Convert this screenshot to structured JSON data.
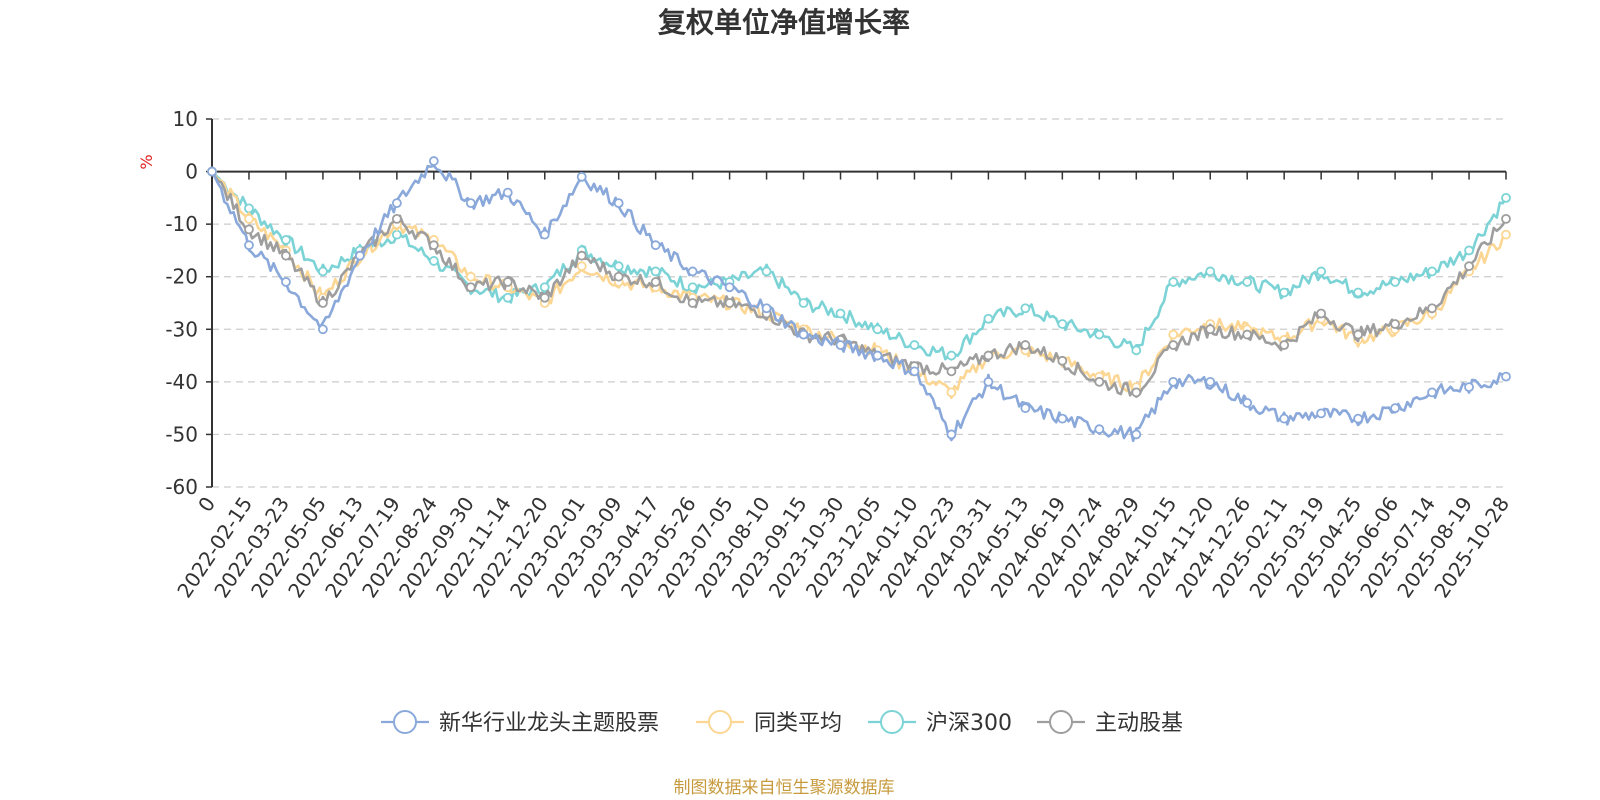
{
  "chart_data": {
    "type": "line",
    "title": "复权单位净值增长率",
    "ylabel": "%",
    "ylim": [
      -60,
      10
    ],
    "yticks": [
      10,
      0,
      -10,
      -20,
      -30,
      -40,
      -50,
      -60
    ],
    "x_tick_labels": [
      "0",
      "2022-02-15",
      "2022-03-23",
      "2022-05-05",
      "2022-06-13",
      "2022-07-19",
      "2022-08-24",
      "2022-09-30",
      "2022-11-14",
      "2022-12-20",
      "2023-02-01",
      "2023-03-09",
      "2023-04-17",
      "2023-05-26",
      "2023-07-05",
      "2023-08-10",
      "2023-09-15",
      "2023-10-30",
      "2023-12-05",
      "2024-01-10",
      "2024-02-23",
      "2024-03-31",
      "2024-05-13",
      "2024-06-19",
      "2024-07-24",
      "2024-08-29",
      "2024-10-15",
      "2024-11-20",
      "2024-12-26",
      "2025-02-11",
      "2025-03-19",
      "2025-04-25",
      "2025-06-06",
      "2025-07-14",
      "2025-08-19",
      "2025-10-28"
    ],
    "series": [
      {
        "name": "新华行业龙头主题股票",
        "color": "#8aa9da",
        "values": [
          0,
          -14,
          -21,
          -30,
          -16,
          -6,
          2,
          -6,
          -4,
          -12,
          -1,
          -6,
          -14,
          -19,
          -22,
          -26,
          -31,
          -33,
          -35,
          -38,
          -50,
          -40,
          -45,
          -47,
          -49,
          -50,
          -40,
          -40,
          -44,
          -47,
          -46,
          -47,
          -45,
          -42,
          -41,
          -39
        ]
      },
      {
        "name": "同类平均",
        "color": "#fcd693",
        "values": [
          0,
          -9,
          -15,
          -24,
          -16,
          -10,
          -13,
          -20,
          -22,
          -25,
          -18,
          -21,
          -22,
          -24,
          -25,
          -27,
          -30,
          -32,
          -34,
          -38,
          -42,
          -35,
          -34,
          -36,
          -39,
          -41,
          -31,
          -29,
          -30,
          -32,
          -28,
          -32,
          -30,
          -27,
          -19,
          -12
        ]
      },
      {
        "name": "沪深300",
        "color": "#7cd3d6",
        "values": [
          0,
          -7,
          -13,
          -19,
          -15,
          -12,
          -17,
          -22,
          -24,
          -22,
          -15,
          -18,
          -19,
          -22,
          -21,
          -19,
          -25,
          -27,
          -30,
          -33,
          -35,
          -28,
          -26,
          -29,
          -31,
          -34,
          -21,
          -19,
          -21,
          -23,
          -19,
          -23,
          -21,
          -19,
          -15,
          -5
        ]
      },
      {
        "name": "主动股基",
        "color": "#9e9e9e",
        "values": [
          0,
          -11,
          -16,
          -25,
          -16,
          -9,
          -14,
          -22,
          -21,
          -24,
          -16,
          -20,
          -21,
          -25,
          -25,
          -27,
          -31,
          -32,
          -35,
          -37,
          -38,
          -35,
          -33,
          -36,
          -40,
          -42,
          -33,
          -30,
          -31,
          -33,
          -27,
          -31,
          -29,
          -26,
          -18,
          -9
        ]
      }
    ],
    "legend_position": "bottom-center",
    "grid": "horizontal-dashed"
  },
  "footer": {
    "source": "制图数据来自恒生聚源数据库"
  }
}
